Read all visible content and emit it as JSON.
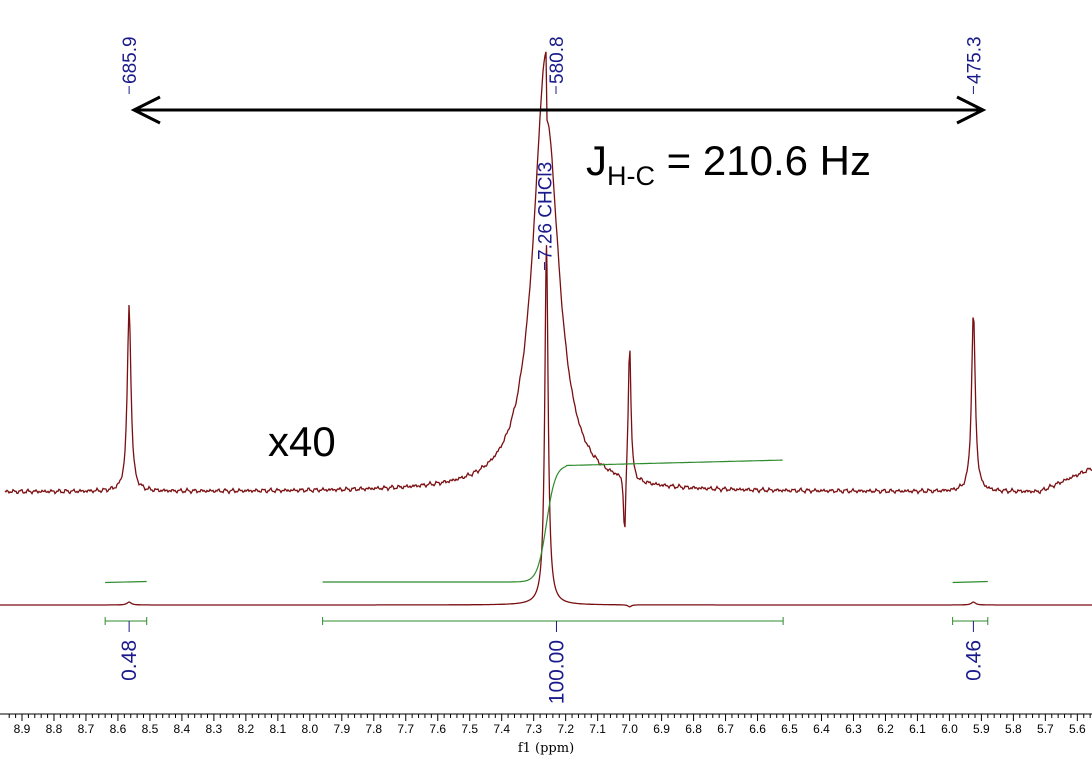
{
  "colors": {
    "spectrum": "#7a0f12",
    "integral": "#2e8b2e",
    "label": "#1a1a8c",
    "axis": "#000000"
  },
  "chart_data": {
    "type": "line",
    "title": "",
    "xlabel": "f1 (ppm)",
    "ylabel": "",
    "xlim": [
      8.95,
      5.6
    ],
    "x_reversed": true,
    "x_ticks": [
      "8.9",
      "8.8",
      "8.7",
      "8.6",
      "8.5",
      "8.4",
      "8.3",
      "8.2",
      "8.1",
      "8.0",
      "7.9",
      "7.8",
      "7.7",
      "7.6",
      "7.5",
      "7.4",
      "7.3",
      "7.2",
      "7.1",
      "7.0",
      "6.9",
      "6.8",
      "6.7",
      "6.6",
      "6.5",
      "6.4",
      "6.3",
      "6.2",
      "6.1",
      "6.0",
      "5.9",
      "5.8",
      "5.7",
      "5.6"
    ],
    "grid": false,
    "peaks": [
      {
        "ppm": 8.565,
        "label": "685.9"
      },
      {
        "ppm": 7.26,
        "label": "580.8"
      },
      {
        "ppm": 7.26,
        "label": "7.26 CHCl3"
      },
      {
        "ppm": 5.925,
        "label": "475.3"
      }
    ],
    "integrals": [
      {
        "from": 8.64,
        "to": 8.51,
        "value": "0.48"
      },
      {
        "from": 7.96,
        "to": 6.52,
        "value": "100.00"
      },
      {
        "from": 5.99,
        "to": 5.88,
        "value": "0.46"
      }
    ],
    "annotations": {
      "coupling_main": "J",
      "coupling_sub": "H-C",
      "coupling_value": " = 210.6 Hz",
      "scale": "x40"
    }
  }
}
